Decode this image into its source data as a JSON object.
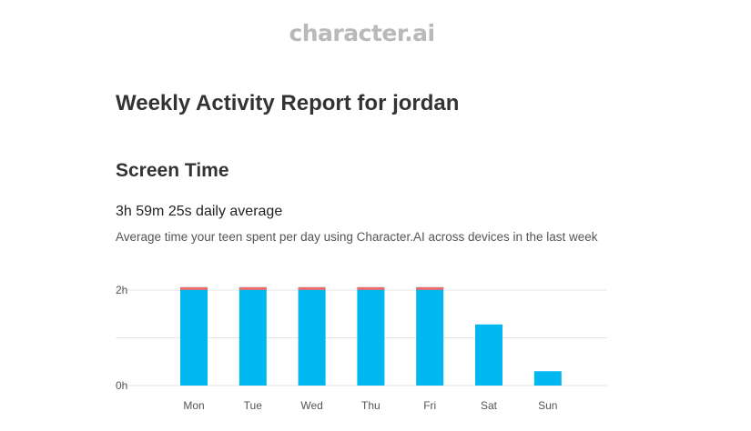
{
  "brand": {
    "logo_text": "character.ai"
  },
  "report": {
    "title": "Weekly Activity Report for jordan"
  },
  "screen_time": {
    "heading": "Screen Time",
    "daily_average": "3h 59m 25s daily average",
    "description": "Average time your teen spent per day using Character.AI across devices in the last week"
  },
  "colors": {
    "bar": "#00b7f0",
    "overflow_cap": "#f26b6b",
    "grid": "#e6e6e6",
    "text": "#333333"
  },
  "chart_data": {
    "type": "bar",
    "categories": [
      "Mon",
      "Tue",
      "Wed",
      "Thu",
      "Fri",
      "Sat",
      "Sun"
    ],
    "values_hours": [
      2.06,
      2.06,
      2.06,
      2.06,
      2.06,
      1.28,
      0.3
    ],
    "overflow_cap": [
      true,
      true,
      true,
      true,
      true,
      false,
      false
    ],
    "ylim": [
      0,
      2
    ],
    "yticks": [
      {
        "value": 2,
        "label": "2h"
      },
      {
        "value": 1,
        "label": ""
      },
      {
        "value": 0,
        "label": "0h"
      }
    ],
    "title": "",
    "xlabel": "",
    "ylabel": "",
    "grid": true
  }
}
